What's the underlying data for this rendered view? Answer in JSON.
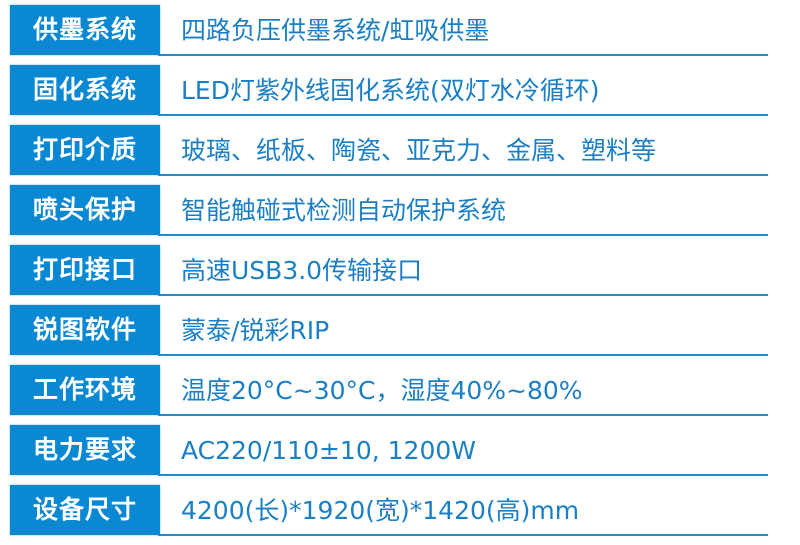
{
  "accent_color": "#0a88d2",
  "rows": [
    {
      "label": "供墨系统",
      "value": "四路负压供墨系统/虹吸供墨"
    },
    {
      "label": "固化系统",
      "value": "LED灯紫外线固化系统(双灯水冷循环)"
    },
    {
      "label": "打印介质",
      "value": "玻璃、纸板、陶瓷、亚克力、金属、塑料等"
    },
    {
      "label": "喷头保护",
      "value": "智能触碰式检测自动保护系统"
    },
    {
      "label": "打印接口",
      "value": "高速USB3.0传输接口"
    },
    {
      "label": "锐图软件",
      "value": "蒙泰/锐彩RIP"
    },
    {
      "label": "工作环境",
      "value": "温度20°C~30°C，湿度40%~80%"
    },
    {
      "label": "电力要求",
      "value": "AC220/110±10, 1200W"
    },
    {
      "label": "设备尺寸",
      "value": "4200(长)*1920(宽)*1420(高)mm"
    }
  ]
}
